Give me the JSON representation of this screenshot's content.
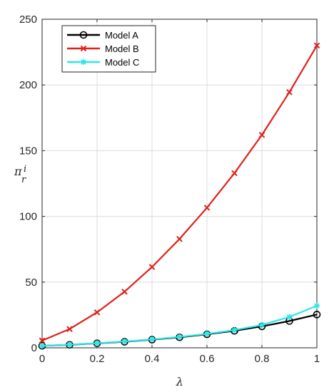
{
  "chart_data": {
    "type": "line",
    "title": "",
    "xlabel": "λ",
    "ylabel_main": "π",
    "ylabel_sup": "i",
    "ylabel_sub": "r",
    "x": [
      0,
      0.1,
      0.2,
      0.3,
      0.4,
      0.5,
      0.6,
      0.7,
      0.8,
      0.9,
      1
    ],
    "xlim": [
      0,
      1
    ],
    "ylim": [
      0,
      250
    ],
    "xticks": [
      "0",
      "0.2",
      "0.4",
      "0.6",
      "0.8",
      "1"
    ],
    "xtick_values": [
      0,
      0.2,
      0.4,
      0.6,
      0.8,
      1
    ],
    "yticks": [
      "0",
      "50",
      "100",
      "150",
      "200",
      "250"
    ],
    "ytick_values": [
      0,
      50,
      100,
      150,
      200,
      250
    ],
    "grid": true,
    "legend_position": "top-left",
    "series": [
      {
        "name": "Model A",
        "color": "#000000",
        "marker": "circle",
        "values": [
          1.5,
          2.3,
          3.4,
          4.6,
          6.2,
          8.0,
          10.3,
          12.9,
          16.3,
          20.4,
          25.3
        ]
      },
      {
        "name": "Model B",
        "color": "#e0201a",
        "marker": "x",
        "values": [
          5.5,
          14.3,
          27.0,
          42.7,
          61.5,
          82.8,
          106.6,
          132.9,
          162.0,
          194.5,
          230.0
        ]
      },
      {
        "name": "Model C",
        "color": "#2ee6e6",
        "marker": "star",
        "values": [
          1.5,
          2.4,
          3.5,
          4.8,
          6.4,
          8.3,
          10.6,
          13.5,
          17.4,
          23.5,
          32.0
        ]
      }
    ]
  }
}
